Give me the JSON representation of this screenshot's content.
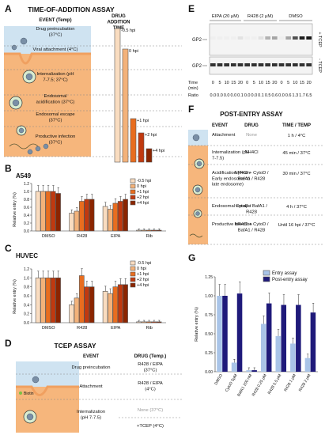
{
  "colors": {
    "sky": "#cfe3f1",
    "cyto": "#f6b67c",
    "membrane": "#f0a060",
    "green": "#7ac143",
    "blue_a": "#a9c4e8",
    "navy": "#1f1a7a",
    "dark": "#8b2500",
    "mid": "#c0390f",
    "orange": "#e86d1f",
    "light": "#f3b27a",
    "pale": "#f9dcc0"
  },
  "panelA": {
    "letter": "A",
    "title": "TIME-OF-ADDITION ASSAY",
    "col_event": "EVENT (Temp)",
    "col_drug": "DRUG ADDITION TIME",
    "events": [
      "Drug preincubation (37°C)",
      "Viral attachment (4°C)",
      "Internalization (pH 7-7.5; 37°C)",
      "Endosomal acidification (37°C)",
      "Endosomal escape (37°C)",
      "Productive infection (37°C)"
    ],
    "bar_labels": [
      "-0.5 hpi",
      "0 hpi",
      "+1 hpi",
      "+2 hpi",
      "+4 hpi"
    ]
  },
  "panelB": {
    "letter": "B",
    "title": "A549"
  },
  "panelC": {
    "letter": "C",
    "title": "HUVEC"
  },
  "panelBC": {
    "ylabel": "Relative entry (%)",
    "yticks": [
      "0.0",
      "0.2",
      "0.4",
      "0.6",
      "0.8",
      "1.0",
      "1.2"
    ],
    "cats": [
      "DMSO",
      "R428",
      "EIPA",
      "Rib"
    ],
    "legend": [
      "-0.5 hpi",
      "0 hpi",
      "+1 hpi",
      "+2 hpi",
      "+4 hpi"
    ]
  },
  "panelD": {
    "letter": "D",
    "title": "TCEP ASSAY",
    "col_event": "EVENT",
    "col_drug": "DRUG (Temp.)",
    "events": [
      "Drug preincubation",
      "Attachment",
      "Internalization (pH 7-7.5)"
    ],
    "drugs": [
      "R428 / EIPA (37°C)",
      "R428 / EIPA (4°C)",
      "None (37°C)",
      "+TCEP (4°C)"
    ],
    "biotin": "Biotin"
  },
  "panelE": {
    "letter": "E",
    "groups": [
      "EIPA (20 µM)",
      "R428 (2 µM)",
      "DMSO"
    ],
    "row_label": "GP2",
    "plus": "+ TCEP",
    "minus": "- TCEP",
    "time_label": "Time (min)",
    "times": [
      "0",
      "5",
      "10",
      "15",
      "20",
      "0",
      "5",
      "10",
      "15",
      "20",
      "0",
      "5",
      "10",
      "15",
      "20"
    ],
    "ratio_label": "Ratio",
    "ratios": [
      "0.0",
      "0.0",
      "0.0",
      "0.0",
      "0.1",
      "0.0",
      "0.0",
      "0.1",
      "0.5",
      "0.6",
      "0.0",
      "0.6",
      "1.3",
      "1.7",
      "6.5"
    ]
  },
  "panelF": {
    "letter": "F",
    "title": "POST-ENTRY ASSAY",
    "col_event": "EVENT",
    "col_drug": "DRUG",
    "col_time": "TIME / TEMP",
    "rows": [
      {
        "event": "Attachment",
        "drug": "None",
        "time": "1 h / 4°C"
      },
      {
        "event": "Internalization (pH 7-7.5)",
        "drug": "NH4Cl",
        "time": "45 min / 37°C"
      },
      {
        "event": "Acidification (From Early endosome to late endosome)",
        "drug": "NH4Cl + CytoD / BafA1 / R428",
        "time": "30 min / 37°C"
      },
      {
        "event": "Endosomal escape",
        "drug": "CytoD / BafA1 / R428",
        "time": "4 h / 37°C"
      },
      {
        "event": "Productive infection",
        "drug": "NH4Cl + CytoD / BafA1 / R428",
        "time": "Until 16 hpi / 37°C"
      }
    ]
  },
  "panelG": {
    "letter": "G",
    "ylabel": "Relative entry (%)",
    "yticks": [
      "0.00",
      "0.25",
      "0.50",
      "0.75",
      "1.00",
      "1.25"
    ],
    "legend": [
      "Entry assay",
      "Post-entry assay"
    ]
  },
  "chart_data": [
    {
      "type": "bar",
      "title": "A549",
      "ylabel": "Relative entry (%)",
      "ylim": [
        0,
        1.2
      ],
      "categories": [
        "DMSO",
        "R428",
        "EIPA",
        "Rib"
      ],
      "series": [
        {
          "name": "-0.5 hpi",
          "values": [
            1.0,
            0.45,
            0.62,
            0.02
          ]
        },
        {
          "name": "0 hpi",
          "values": [
            1.0,
            0.5,
            0.55,
            0.02
          ]
        },
        {
          "name": "+1 hpi",
          "values": [
            1.0,
            0.75,
            0.7,
            0.02
          ]
        },
        {
          "name": "+2 hpi",
          "values": [
            1.0,
            0.8,
            0.75,
            0.02
          ]
        },
        {
          "name": "+4 hpi",
          "values": [
            0.95,
            0.8,
            0.8,
            0.02
          ]
        }
      ]
    },
    {
      "type": "bar",
      "title": "HUVEC",
      "ylabel": "Relative entry (%)",
      "ylim": [
        0,
        1.2
      ],
      "categories": [
        "DMSO",
        "R428",
        "EIPA",
        "Rib"
      ],
      "series": [
        {
          "name": "-0.5 hpi",
          "values": [
            1.0,
            0.4,
            0.7,
            0.02
          ]
        },
        {
          "name": "0 hpi",
          "values": [
            1.0,
            0.55,
            0.65,
            0.02
          ]
        },
        {
          "name": "+1 hpi",
          "values": [
            1.0,
            1.05,
            0.8,
            0.02
          ]
        },
        {
          "name": "+2 hpi",
          "values": [
            1.0,
            0.8,
            0.85,
            0.02
          ]
        },
        {
          "name": "+4 hpi",
          "values": [
            1.0,
            0.8,
            0.85,
            0.02
          ]
        }
      ]
    },
    {
      "type": "bar",
      "ylabel": "Relative entry (%)",
      "ylim": [
        0,
        1.25
      ],
      "categories": [
        "DMSO",
        "CytoD 5µM",
        "BafA1 200 nM",
        "R428 0.25 µM",
        "R428 0.5 µM",
        "R428 1 µM",
        "R428 2 µM"
      ],
      "series": [
        {
          "name": "Entry assay",
          "values": [
            1.0,
            0.12,
            0.02,
            0.63,
            0.47,
            0.37,
            0.18
          ]
        },
        {
          "name": "Post-entry assay",
          "values": [
            1.0,
            1.03,
            0.02,
            0.9,
            0.88,
            0.88,
            0.78
          ]
        }
      ]
    }
  ]
}
